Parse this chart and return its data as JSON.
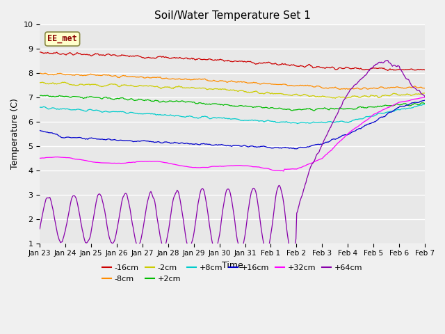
{
  "title": "Soil/Water Temperature Set 1",
  "xlabel": "Time",
  "ylabel": "Temperature (C)",
  "ylim": [
    1.0,
    10.0
  ],
  "yticks": [
    1.0,
    2.0,
    3.0,
    4.0,
    5.0,
    6.0,
    7.0,
    8.0,
    9.0,
    10.0
  ],
  "date_labels": [
    "Jan 23",
    "Jan 24",
    "Jan 25",
    "Jan 26",
    "Jan 27",
    "Jan 28",
    "Jan 29",
    "Jan 30",
    "Jan 31",
    "Feb 1",
    "Feb 2",
    "Feb 3",
    "Feb 4",
    "Feb 5",
    "Feb 6",
    "Feb 7"
  ],
  "annotation_label": "EE_met",
  "annotation_color": "#8B0000",
  "annotation_bg": "#FFFFCC",
  "bg_color": "#E8E8E8",
  "plot_bg": "#F0F0F0",
  "series": [
    {
      "label": "-16cm",
      "color": "#CC0000"
    },
    {
      "label": "-8cm",
      "color": "#FF8C00"
    },
    {
      "label": "-2cm",
      "color": "#CCCC00"
    },
    {
      "label": "+2cm",
      "color": "#00BB00"
    },
    {
      "label": "+8cm",
      "color": "#00CCCC"
    },
    {
      "label": "+16cm",
      "color": "#0000CC"
    },
    {
      "label": "+32cm",
      "color": "#FF00FF"
    },
    {
      "label": "+64cm",
      "color": "#8800AA"
    }
  ]
}
